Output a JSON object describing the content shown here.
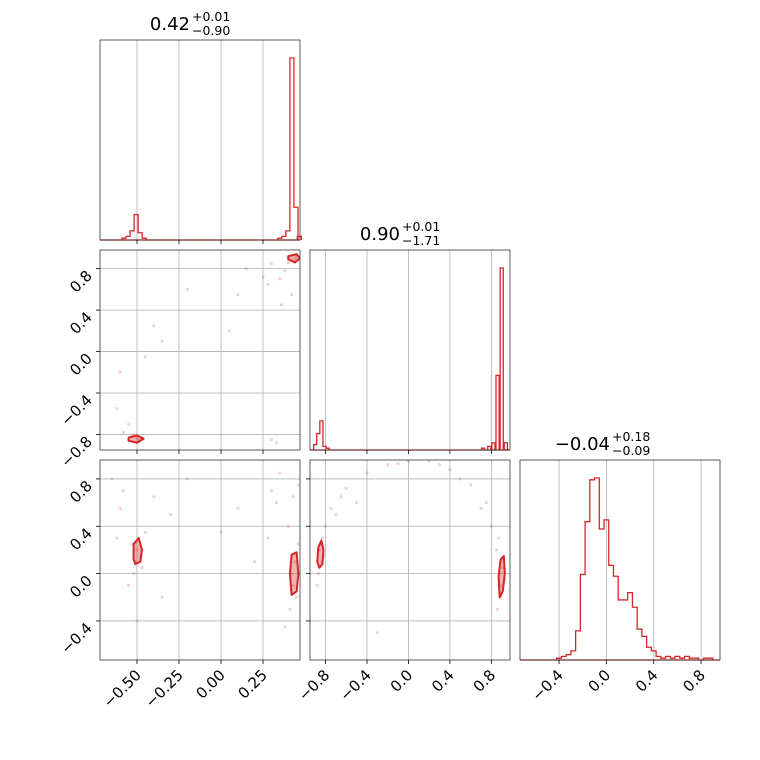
{
  "chart_data": {
    "type": "corner",
    "color": "#d62728",
    "grid": true,
    "parameters": [
      {
        "range": [
          -0.72,
          0.47
        ],
        "ticks": [
          -0.5,
          -0.25,
          0.0,
          0.25
        ],
        "tick_labels": [
          "−0.50",
          "−0.25",
          "0.00",
          "0.25"
        ],
        "title": {
          "median": "0.42",
          "plus": "+0.01",
          "minus": "−0.90"
        }
      },
      {
        "range": [
          -0.95,
          0.98
        ],
        "ticks": [
          -0.8,
          -0.4,
          0.0,
          0.4,
          0.8
        ],
        "tick_labels": [
          "−0.8",
          "−0.4",
          "0.0",
          "0.4",
          "0.8"
        ],
        "title": {
          "median": "0.90",
          "plus": "+0.01",
          "minus": "−1.71"
        }
      },
      {
        "range": [
          -0.73,
          0.96
        ],
        "ticks": [
          -0.4,
          0.0,
          0.4,
          0.8
        ],
        "tick_labels": [
          "−0.4",
          "0.0",
          "0.4",
          "0.8"
        ],
        "title": {
          "median": "−0.04",
          "plus": "+0.18",
          "minus": "−0.09"
        }
      }
    ],
    "histograms": [
      {
        "bins": [
          {
            "x": -0.577,
            "h": 0.01
          },
          {
            "x": -0.553,
            "h": 0.02
          },
          {
            "x": -0.529,
            "h": 0.05
          },
          {
            "x": -0.505,
            "h": 0.14
          },
          {
            "x": -0.481,
            "h": 0.04
          },
          {
            "x": -0.457,
            "h": 0.01
          },
          {
            "x": 0.35,
            "h": 0.01
          },
          {
            "x": 0.374,
            "h": 0.02
          },
          {
            "x": 0.398,
            "h": 0.05
          },
          {
            "x": 0.422,
            "h": 1.0
          },
          {
            "x": 0.446,
            "h": 0.18
          },
          {
            "x": 0.466,
            "h": 0.02
          }
        ]
      },
      {
        "bins": [
          {
            "x": -0.9,
            "h": 0.03
          },
          {
            "x": -0.87,
            "h": 0.09
          },
          {
            "x": -0.84,
            "h": 0.16
          },
          {
            "x": -0.81,
            "h": 0.02
          },
          {
            "x": -0.78,
            "h": 0.01
          },
          {
            "x": 0.72,
            "h": 0.01
          },
          {
            "x": 0.78,
            "h": 0.02
          },
          {
            "x": 0.82,
            "h": 0.04
          },
          {
            "x": 0.86,
            "h": 0.41
          },
          {
            "x": 0.9,
            "h": 1.0
          },
          {
            "x": 0.94,
            "h": 0.04
          }
        ]
      },
      {
        "bins": [
          {
            "x": -0.4,
            "h": 0.01
          },
          {
            "x": -0.36,
            "h": 0.02
          },
          {
            "x": -0.32,
            "h": 0.03
          },
          {
            "x": -0.28,
            "h": 0.05
          },
          {
            "x": -0.24,
            "h": 0.16
          },
          {
            "x": -0.2,
            "h": 0.47
          },
          {
            "x": -0.16,
            "h": 0.76
          },
          {
            "x": -0.12,
            "h": 0.99
          },
          {
            "x": -0.08,
            "h": 1.0
          },
          {
            "x": -0.04,
            "h": 0.72
          },
          {
            "x": 0.0,
            "h": 0.77
          },
          {
            "x": 0.04,
            "h": 0.52
          },
          {
            "x": 0.08,
            "h": 0.46
          },
          {
            "x": 0.12,
            "h": 0.33
          },
          {
            "x": 0.16,
            "h": 0.33
          },
          {
            "x": 0.2,
            "h": 0.37
          },
          {
            "x": 0.24,
            "h": 0.29
          },
          {
            "x": 0.28,
            "h": 0.17
          },
          {
            "x": 0.32,
            "h": 0.13
          },
          {
            "x": 0.36,
            "h": 0.07
          },
          {
            "x": 0.4,
            "h": 0.05
          },
          {
            "x": 0.44,
            "h": 0.02
          },
          {
            "x": 0.48,
            "h": 0.01
          },
          {
            "x": 0.52,
            "h": 0.02
          },
          {
            "x": 0.56,
            "h": 0.01
          },
          {
            "x": 0.6,
            "h": 0.02
          },
          {
            "x": 0.64,
            "h": 0.01
          },
          {
            "x": 0.68,
            "h": 0.02
          },
          {
            "x": 0.72,
            "h": 0.01
          },
          {
            "x": 0.76,
            "h": 0.01
          },
          {
            "x": 0.84,
            "h": 0.01
          },
          {
            "x": 0.88,
            "h": 0.01
          }
        ]
      }
    ],
    "scatter_panels": [
      {
        "x_param": 0,
        "y_param": 1,
        "points": [
          [
            0.44,
            0.9
          ],
          [
            0.43,
            0.88
          ],
          [
            0.45,
            0.92
          ],
          [
            0.4,
            0.86
          ],
          [
            0.38,
            0.78
          ],
          [
            0.35,
            0.7
          ],
          [
            0.3,
            0.85
          ],
          [
            0.28,
            0.65
          ],
          [
            0.42,
            0.55
          ],
          [
            0.36,
            0.45
          ],
          [
            0.25,
            0.72
          ],
          [
            0.1,
            0.55
          ],
          [
            0.05,
            0.2
          ],
          [
            0.3,
            -0.85
          ],
          [
            0.33,
            -0.88
          ],
          [
            -0.2,
            0.6
          ],
          [
            -0.35,
            0.1
          ],
          [
            -0.45,
            -0.05
          ],
          [
            -0.6,
            -0.2
          ],
          [
            -0.55,
            -0.7
          ],
          [
            -0.52,
            -0.8
          ],
          [
            -0.5,
            -0.84
          ],
          [
            -0.48,
            -0.85
          ],
          [
            -0.53,
            -0.82
          ],
          [
            -0.49,
            -0.87
          ],
          [
            -0.47,
            -0.83
          ],
          [
            -0.58,
            -0.78
          ],
          [
            -0.62,
            -0.55
          ],
          [
            -0.4,
            0.25
          ],
          [
            0.15,
            0.8
          ]
        ],
        "contours": [
          [
            [
              -0.55,
              -0.83
            ],
            [
              -0.5,
              -0.81
            ],
            [
              -0.46,
              -0.84
            ],
            [
              -0.5,
              -0.88
            ],
            [
              -0.55,
              -0.86
            ]
          ],
          [
            [
              0.4,
              0.92
            ],
            [
              0.45,
              0.94
            ],
            [
              0.47,
              0.9
            ],
            [
              0.44,
              0.86
            ],
            [
              0.4,
              0.89
            ]
          ]
        ]
      },
      {
        "x_param": 0,
        "y_param": 2,
        "points": [
          [
            -0.5,
            0.2
          ],
          [
            -0.51,
            0.1
          ],
          [
            -0.49,
            0.3
          ],
          [
            -0.52,
            0.0
          ],
          [
            -0.48,
            0.15
          ],
          [
            -0.53,
            0.25
          ],
          [
            -0.47,
            0.05
          ],
          [
            -0.55,
            -0.1
          ],
          [
            -0.45,
            0.35
          ],
          [
            -0.5,
            -0.4
          ],
          [
            -0.6,
            0.55
          ],
          [
            -0.58,
            0.7
          ],
          [
            -0.62,
            0.3
          ],
          [
            -0.4,
            0.65
          ],
          [
            -0.3,
            0.5
          ],
          [
            -0.2,
            0.8
          ],
          [
            0.1,
            0.55
          ],
          [
            0.2,
            0.1
          ],
          [
            0.3,
            0.7
          ],
          [
            0.35,
            0.85
          ],
          [
            0.4,
            0.4
          ],
          [
            0.42,
            0.0
          ],
          [
            0.43,
            -0.1
          ],
          [
            0.44,
            0.1
          ],
          [
            0.45,
            -0.2
          ],
          [
            0.41,
            -0.3
          ],
          [
            0.38,
            -0.45
          ],
          [
            0.46,
            0.25
          ],
          [
            0.33,
            0.6
          ],
          [
            0.28,
            0.3
          ],
          [
            -0.35,
            -0.2
          ],
          [
            -0.65,
            0.8
          ],
          [
            0.0,
            0.35
          ],
          [
            0.43,
            0.65
          ],
          [
            0.46,
            0.75
          ]
        ],
        "contours": [
          [
            [
              -0.51,
              0.08
            ],
            [
              -0.48,
              0.1
            ],
            [
              -0.47,
              0.2
            ],
            [
              -0.49,
              0.3
            ],
            [
              -0.52,
              0.25
            ],
            [
              -0.52,
              0.12
            ]
          ],
          [
            [
              0.42,
              -0.18
            ],
            [
              0.45,
              -0.15
            ],
            [
              0.46,
              0.0
            ],
            [
              0.45,
              0.18
            ],
            [
              0.42,
              0.16
            ],
            [
              0.41,
              0.0
            ]
          ]
        ]
      },
      {
        "x_param": 1,
        "y_param": 2,
        "points": [
          [
            -0.84,
            0.1
          ],
          [
            -0.86,
            0.2
          ],
          [
            -0.83,
            0.3
          ],
          [
            -0.87,
            0.0
          ],
          [
            -0.82,
            0.15
          ],
          [
            -0.85,
            0.25
          ],
          [
            -0.8,
            0.4
          ],
          [
            -0.75,
            0.55
          ],
          [
            -0.6,
            0.72
          ],
          [
            -0.4,
            0.85
          ],
          [
            -0.2,
            0.92
          ],
          [
            0.0,
            0.95
          ],
          [
            0.2,
            0.95
          ],
          [
            0.4,
            0.88
          ],
          [
            0.6,
            0.75
          ],
          [
            0.7,
            0.55
          ],
          [
            0.8,
            0.4
          ],
          [
            0.85,
            0.2
          ],
          [
            0.88,
            0.0
          ],
          [
            0.9,
            -0.1
          ],
          [
            0.91,
            0.05
          ],
          [
            0.89,
            -0.2
          ],
          [
            0.86,
            -0.3
          ],
          [
            0.92,
            0.1
          ],
          [
            0.87,
            0.3
          ],
          [
            -0.7,
            0.5
          ],
          [
            -0.5,
            0.6
          ],
          [
            -0.3,
            -0.5
          ],
          [
            0.5,
            0.8
          ],
          [
            0.75,
            0.6
          ],
          [
            -0.88,
            -0.1
          ],
          [
            0.93,
            -0.05
          ],
          [
            0.3,
            0.92
          ],
          [
            -0.1,
            0.93
          ],
          [
            -0.65,
            0.65
          ]
        ],
        "contours": [
          [
            [
              -0.86,
              0.05
            ],
            [
              -0.83,
              0.08
            ],
            [
              -0.82,
              0.2
            ],
            [
              -0.84,
              0.28
            ],
            [
              -0.87,
              0.22
            ],
            [
              -0.88,
              0.1
            ]
          ],
          [
            [
              0.88,
              -0.2
            ],
            [
              0.91,
              -0.15
            ],
            [
              0.93,
              0.0
            ],
            [
              0.92,
              0.15
            ],
            [
              0.89,
              0.12
            ],
            [
              0.87,
              -0.02
            ]
          ]
        ]
      }
    ]
  }
}
